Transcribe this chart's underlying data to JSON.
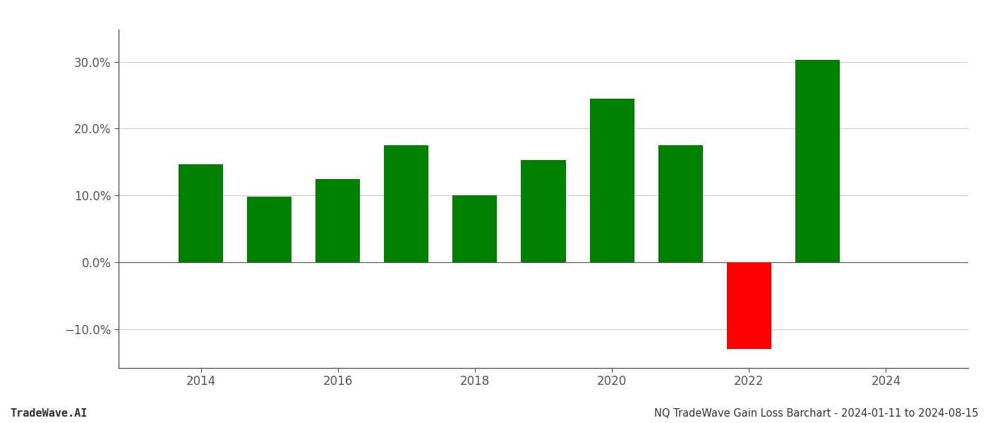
{
  "years": [
    2014,
    2015,
    2016,
    2017,
    2018,
    2019,
    2020,
    2021,
    2022,
    2023
  ],
  "values": [
    0.147,
    0.098,
    0.125,
    0.175,
    0.1,
    0.153,
    0.245,
    0.175,
    -0.13,
    0.303
  ],
  "colors": [
    "#008000",
    "#008000",
    "#008000",
    "#008000",
    "#008000",
    "#008000",
    "#008000",
    "#008000",
    "#ff0000",
    "#008000"
  ],
  "title": "NQ TradeWave Gain Loss Barchart - 2024-01-11 to 2024-08-15",
  "watermark": "TradeWave.AI",
  "ylim_min": -0.158,
  "ylim_max": 0.348,
  "yticks": [
    -0.1,
    0.0,
    0.1,
    0.2,
    0.3
  ],
  "xtick_positions": [
    2014,
    2016,
    2018,
    2020,
    2022,
    2024
  ],
  "xtick_labels": [
    "2014",
    "2016",
    "2018",
    "2020",
    "2022",
    "2024"
  ],
  "xlim_min": 2012.8,
  "xlim_max": 2025.2,
  "bar_width": 0.65,
  "background_color": "#ffffff",
  "grid_color": "#cccccc",
  "spine_color": "#555555",
  "tick_color": "#555555",
  "title_fontsize": 10.5,
  "watermark_fontsize": 11,
  "tick_fontsize": 12
}
